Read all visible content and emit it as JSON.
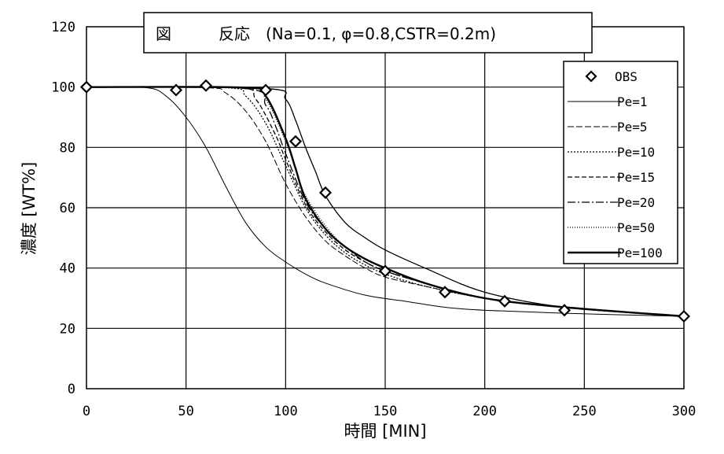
{
  "chart_data": {
    "type": "line",
    "title": "図　　　反応　(Na=0.1, φ=0.8,CSTR=0.2m)",
    "xlabel": "時間 [MIN]",
    "ylabel": "濃度 [WT%]",
    "xlim": [
      0,
      300
    ],
    "ylim": [
      0,
      120
    ],
    "x_ticks": [
      0,
      50,
      100,
      150,
      200,
      250,
      300
    ],
    "y_ticks": [
      0,
      20,
      40,
      60,
      80,
      100,
      120
    ],
    "grid": true,
    "legend_position": "right",
    "observed": {
      "name": "OBS",
      "x": [
        0,
        45,
        60,
        90,
        105,
        120,
        150,
        180,
        210,
        240,
        300
      ],
      "y": [
        100,
        99,
        100.5,
        99,
        82,
        65,
        39,
        32,
        29,
        26,
        24
      ]
    },
    "series": [
      {
        "name": "Pe=1",
        "dash": "solid",
        "width": 1,
        "x": [
          0,
          30,
          40,
          50,
          60,
          70,
          80,
          90,
          100,
          110,
          120,
          140,
          160,
          180,
          200,
          240,
          300
        ],
        "y": [
          100,
          99.8,
          97,
          90,
          80,
          67,
          55,
          47,
          42,
          38,
          35,
          31,
          29,
          27,
          26,
          25,
          24
        ]
      },
      {
        "name": "Pe=5",
        "dash": "8 3",
        "width": 1,
        "x": [
          0,
          60,
          70,
          80,
          90,
          100,
          110,
          120,
          130,
          140,
          150,
          170,
          200,
          240,
          300
        ],
        "y": [
          100,
          99.8,
          98,
          92,
          82,
          68,
          57,
          49,
          44,
          40,
          37,
          34,
          30,
          27,
          24
        ]
      },
      {
        "name": "Pe=10",
        "dash": "2 2",
        "width": 1.3,
        "x": [
          0,
          70,
          80,
          90,
          100,
          110,
          120,
          130,
          140,
          150,
          170,
          200,
          240,
          300
        ],
        "y": [
          100,
          99.8,
          97,
          88,
          74,
          60,
          51,
          45,
          41,
          38,
          34,
          30,
          27,
          24
        ]
      },
      {
        "name": "Pe=15",
        "dash": "6 3",
        "width": 1.3,
        "x": [
          0,
          75,
          85,
          95,
          100,
          110,
          120,
          130,
          140,
          150,
          170,
          200,
          240,
          300
        ],
        "y": [
          100,
          99.8,
          96,
          84,
          76,
          61,
          52,
          46,
          42,
          39,
          35,
          30,
          27,
          24
        ]
      },
      {
        "name": "Pe=20",
        "dash": "10 3 2 3",
        "width": 1.3,
        "x": [
          0,
          80,
          90,
          95,
          100,
          110,
          120,
          130,
          140,
          150,
          170,
          200,
          240,
          300
        ],
        "y": [
          100,
          99.5,
          94,
          87,
          78,
          62,
          53,
          47,
          42,
          39,
          35,
          30,
          27,
          24
        ]
      },
      {
        "name": "Pe=50",
        "dash": "1 2",
        "width": 1.3,
        "x": [
          0,
          80,
          90,
          100,
          105,
          110,
          120,
          130,
          140,
          150,
          170,
          200,
          240,
          300
        ],
        "y": [
          100,
          99.8,
          96,
          82,
          73,
          64,
          54,
          47,
          43,
          40,
          35,
          30,
          27,
          24
        ]
      },
      {
        "name": "Pe=100",
        "dash": "solid",
        "width": 2.4,
        "x": [
          0,
          80,
          90,
          100,
          105,
          110,
          120,
          130,
          140,
          150,
          170,
          200,
          240,
          300
        ],
        "y": [
          100,
          99.8,
          97,
          83,
          73,
          63,
          53,
          47,
          43,
          40,
          35,
          30,
          27,
          24
        ]
      },
      {
        "name": "",
        "dash": "solid",
        "width": 1.3,
        "x": [
          0,
          90,
          100,
          105,
          110,
          115,
          120,
          130,
          140,
          150,
          170,
          200,
          240,
          300
        ],
        "y": [
          100,
          99.5,
          96,
          89,
          80,
          72,
          64,
          55,
          50,
          46,
          40,
          32,
          27,
          24
        ]
      }
    ]
  }
}
